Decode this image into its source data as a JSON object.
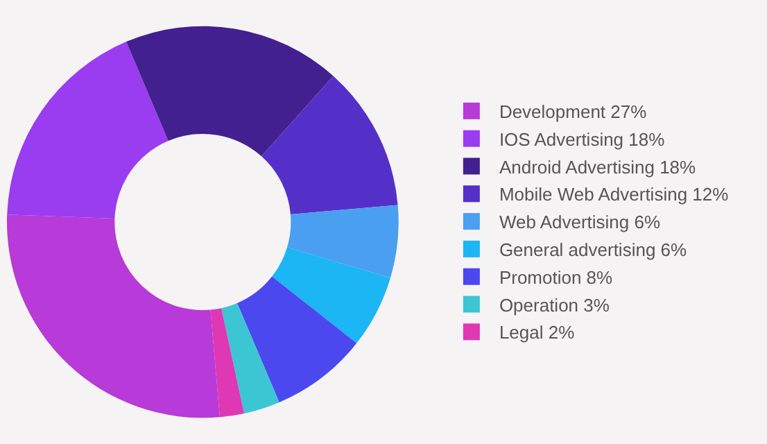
{
  "chart_data": {
    "type": "donut",
    "categories": [
      "Development 27%",
      "IOS Advertising 18%",
      "Android Advertising 18%",
      "Mobile Web Advertising 12%",
      "Web Advertising 6%",
      "General advertising 6%",
      "Promotion 8%",
      "Operation 3%",
      "Legal 2%"
    ],
    "values": [
      27,
      18,
      18,
      12,
      6,
      6,
      8,
      3,
      2
    ],
    "colors": [
      "#b83ad8",
      "#9a3cf0",
      "#42208f",
      "#5530c8",
      "#4a9ff0",
      "#1cb6f4",
      "#4a48ee",
      "#3cc6d4",
      "#de38b4"
    ],
    "legend": "right"
  }
}
